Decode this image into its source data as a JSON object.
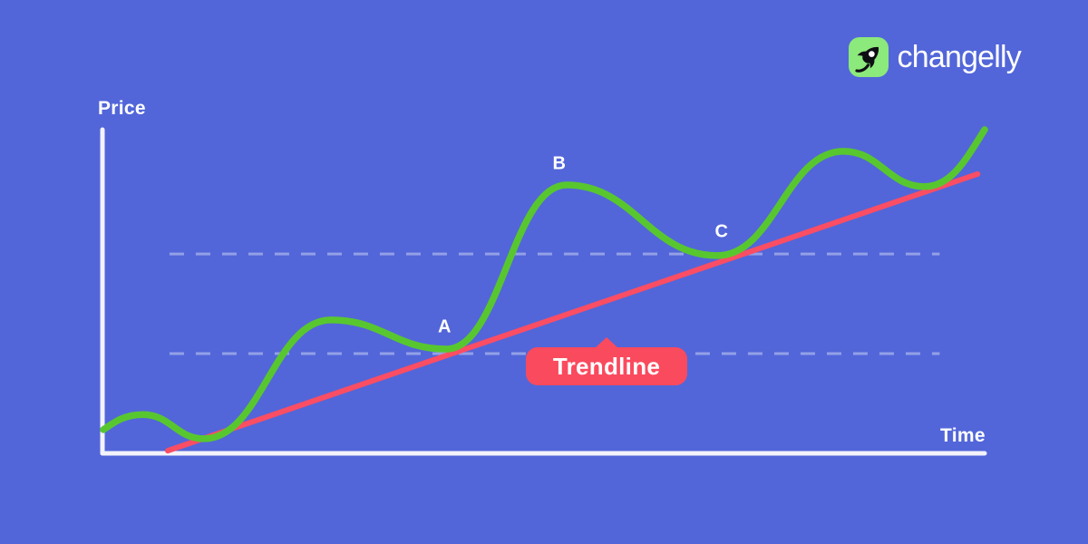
{
  "brand": {
    "name": "changelly"
  },
  "colors": {
    "background": "#5266d9",
    "curve_green": "#58c72f",
    "trend_red": "#fb4d63",
    "badge_red": "#fa4a5e",
    "axis_white": "#f2f3fb",
    "dashed_white": "rgba(255,255,255,0.38)",
    "label_white": "#ffffff",
    "logo_tile_green": "#8ce97b",
    "logo_rocket_black": "#0d0e13",
    "brand_text_white": "#ffffff"
  },
  "chart_data": {
    "type": "line",
    "title": "",
    "xlabel": "Time",
    "ylabel": "Price",
    "x_range": [
      0,
      100
    ],
    "y_range": [
      0,
      100
    ],
    "grid": false,
    "legend": "none",
    "series": [
      {
        "id": "price",
        "name": "Price action curve",
        "color": "#58c72f",
        "style": "smooth-wave",
        "points": [
          [
            0.1,
            7.3
          ],
          [
            4.6,
            12.0
          ],
          [
            11.5,
            4.5
          ],
          [
            25.9,
            41.2
          ],
          [
            39.0,
            32.2
          ],
          [
            52.6,
            82.9
          ],
          [
            69.7,
            61.1
          ],
          [
            84.0,
            93.3
          ],
          [
            93.2,
            82.4
          ],
          [
            100,
            100
          ]
        ]
      },
      {
        "id": "trendline",
        "name": "Trendline (ascending support)",
        "color": "#fb4d63",
        "style": "straight",
        "points": [
          [
            7.4,
            0.8
          ],
          [
            99.2,
            86.3
          ]
        ]
      }
    ],
    "annotations": [
      {
        "label": "A",
        "x": 38.8,
        "y": 38.9
      },
      {
        "label": "B",
        "x": 51.8,
        "y": 89.4
      },
      {
        "label": "C",
        "x": 70.2,
        "y": 68.3
      }
    ],
    "badge": {
      "label": "Trendline"
    },
    "support_levels": [
      61.6,
      30.8
    ],
    "support_levels_x_range": [
      7.6,
      94.9
    ]
  }
}
